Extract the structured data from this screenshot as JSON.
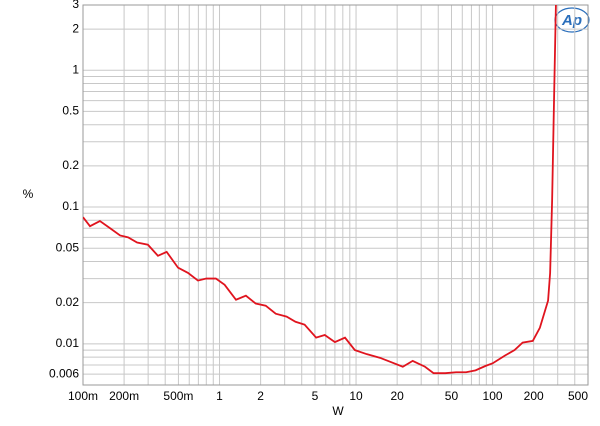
{
  "chart_data": {
    "type": "line",
    "log_x": true,
    "log_y": true,
    "grid": true,
    "logo": "Ap",
    "x_label": "W",
    "y_label": "%",
    "xlim": [
      0.1,
      500
    ],
    "ylim": [
      0.005,
      3
    ],
    "xticks": [
      {
        "value": 0.1,
        "label": "100m"
      },
      {
        "value": 0.2,
        "label": "200m"
      },
      {
        "value": 0.5,
        "label": "500m"
      },
      1,
      2,
      5,
      10,
      20,
      50,
      100,
      200,
      500
    ],
    "yticks": [
      0.006,
      0.01,
      0.02,
      0.05,
      0.1,
      0.2,
      0.5,
      1,
      2,
      3
    ],
    "xgrid": [
      0.1,
      0.2,
      0.3,
      0.4,
      0.5,
      0.6,
      0.7,
      0.8,
      0.9,
      1,
      2,
      3,
      4,
      5,
      6,
      7,
      8,
      9,
      10,
      20,
      30,
      40,
      50,
      60,
      70,
      80,
      90,
      100,
      200,
      300,
      400,
      500
    ],
    "ygrid": [
      0.005,
      0.006,
      0.007,
      0.008,
      0.009,
      0.01,
      0.02,
      0.03,
      0.04,
      0.05,
      0.06,
      0.07,
      0.08,
      0.09,
      0.1,
      0.2,
      0.3,
      0.4,
      0.5,
      0.6,
      0.7,
      0.8,
      0.9,
      1,
      2,
      3
    ],
    "series": [
      {
        "color": "#e0141e",
        "x": [
          0.1,
          0.1125,
          0.133,
          0.158,
          0.187,
          0.214,
          0.249,
          0.299,
          0.354,
          0.41,
          0.497,
          0.588,
          0.695,
          0.8,
          0.94,
          1.09,
          1.32,
          1.56,
          1.84,
          2.18,
          2.58,
          3.1,
          3.6,
          4.2,
          5.1,
          5.9,
          7.0,
          8.3,
          9.8,
          12,
          15,
          19,
          22,
          26,
          32,
          37,
          45,
          54,
          64,
          75,
          89,
          100,
          123,
          145,
          166,
          197,
          222,
          255,
          264,
          273,
          282,
          291
        ],
        "values": [
          0.0844,
          0.0724,
          0.079,
          0.07,
          0.062,
          0.06,
          0.055,
          0.053,
          0.044,
          0.047,
          0.036,
          0.033,
          0.029,
          0.03,
          0.03,
          0.027,
          0.021,
          0.0225,
          0.0197,
          0.019,
          0.0166,
          0.0158,
          0.0145,
          0.0138,
          0.0111,
          0.0116,
          0.0103,
          0.0111,
          0.009,
          0.0084,
          0.0079,
          0.0072,
          0.0068,
          0.0075,
          0.0068,
          0.0061,
          0.0061,
          0.0062,
          0.0062,
          0.0064,
          0.0069,
          0.0072,
          0.0082,
          0.009,
          0.0102,
          0.0105,
          0.0131,
          0.0207,
          0.033,
          0.112,
          0.61,
          3
        ]
      }
    ]
  }
}
